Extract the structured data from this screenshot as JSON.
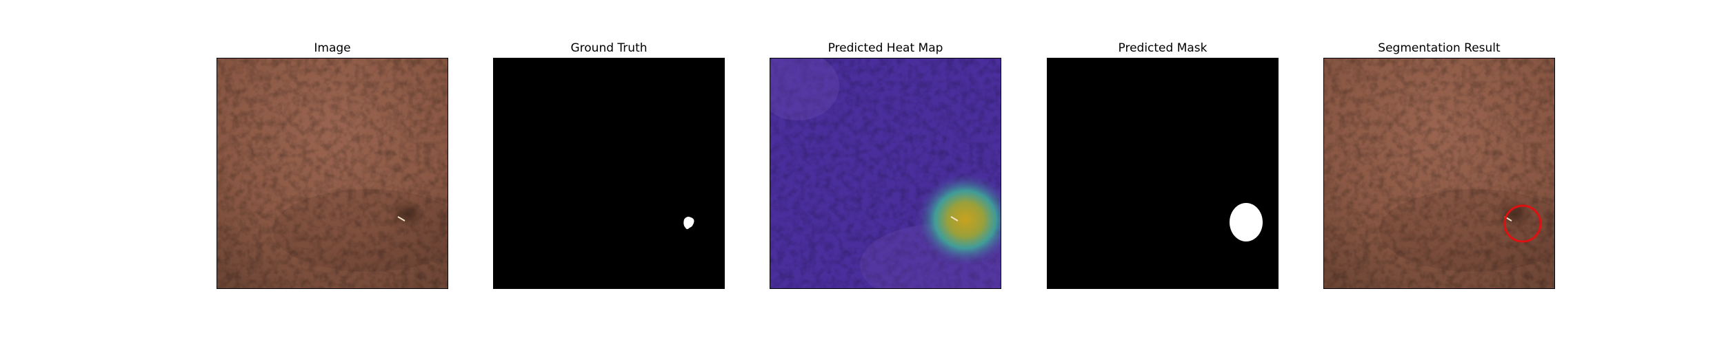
{
  "figure": {
    "panels": [
      {
        "title": "Image"
      },
      {
        "title": "Ground Truth"
      },
      {
        "title": "Predicted Heat Map"
      },
      {
        "title": "Predicted Mask"
      },
      {
        "title": "Segmentation Result"
      }
    ]
  },
  "colors": {
    "leather": "#8e5a45",
    "mask_background": "#000000",
    "mask_foreground": "#ffffff",
    "heatmap_low": "#4a2a9a",
    "heatmap_high": "#c9a21e",
    "result_marker": "#e01010"
  },
  "icons": [
    "leather-image",
    "ground-truth-mask",
    "heatmap",
    "predicted-mask",
    "red-circle-marker"
  ]
}
